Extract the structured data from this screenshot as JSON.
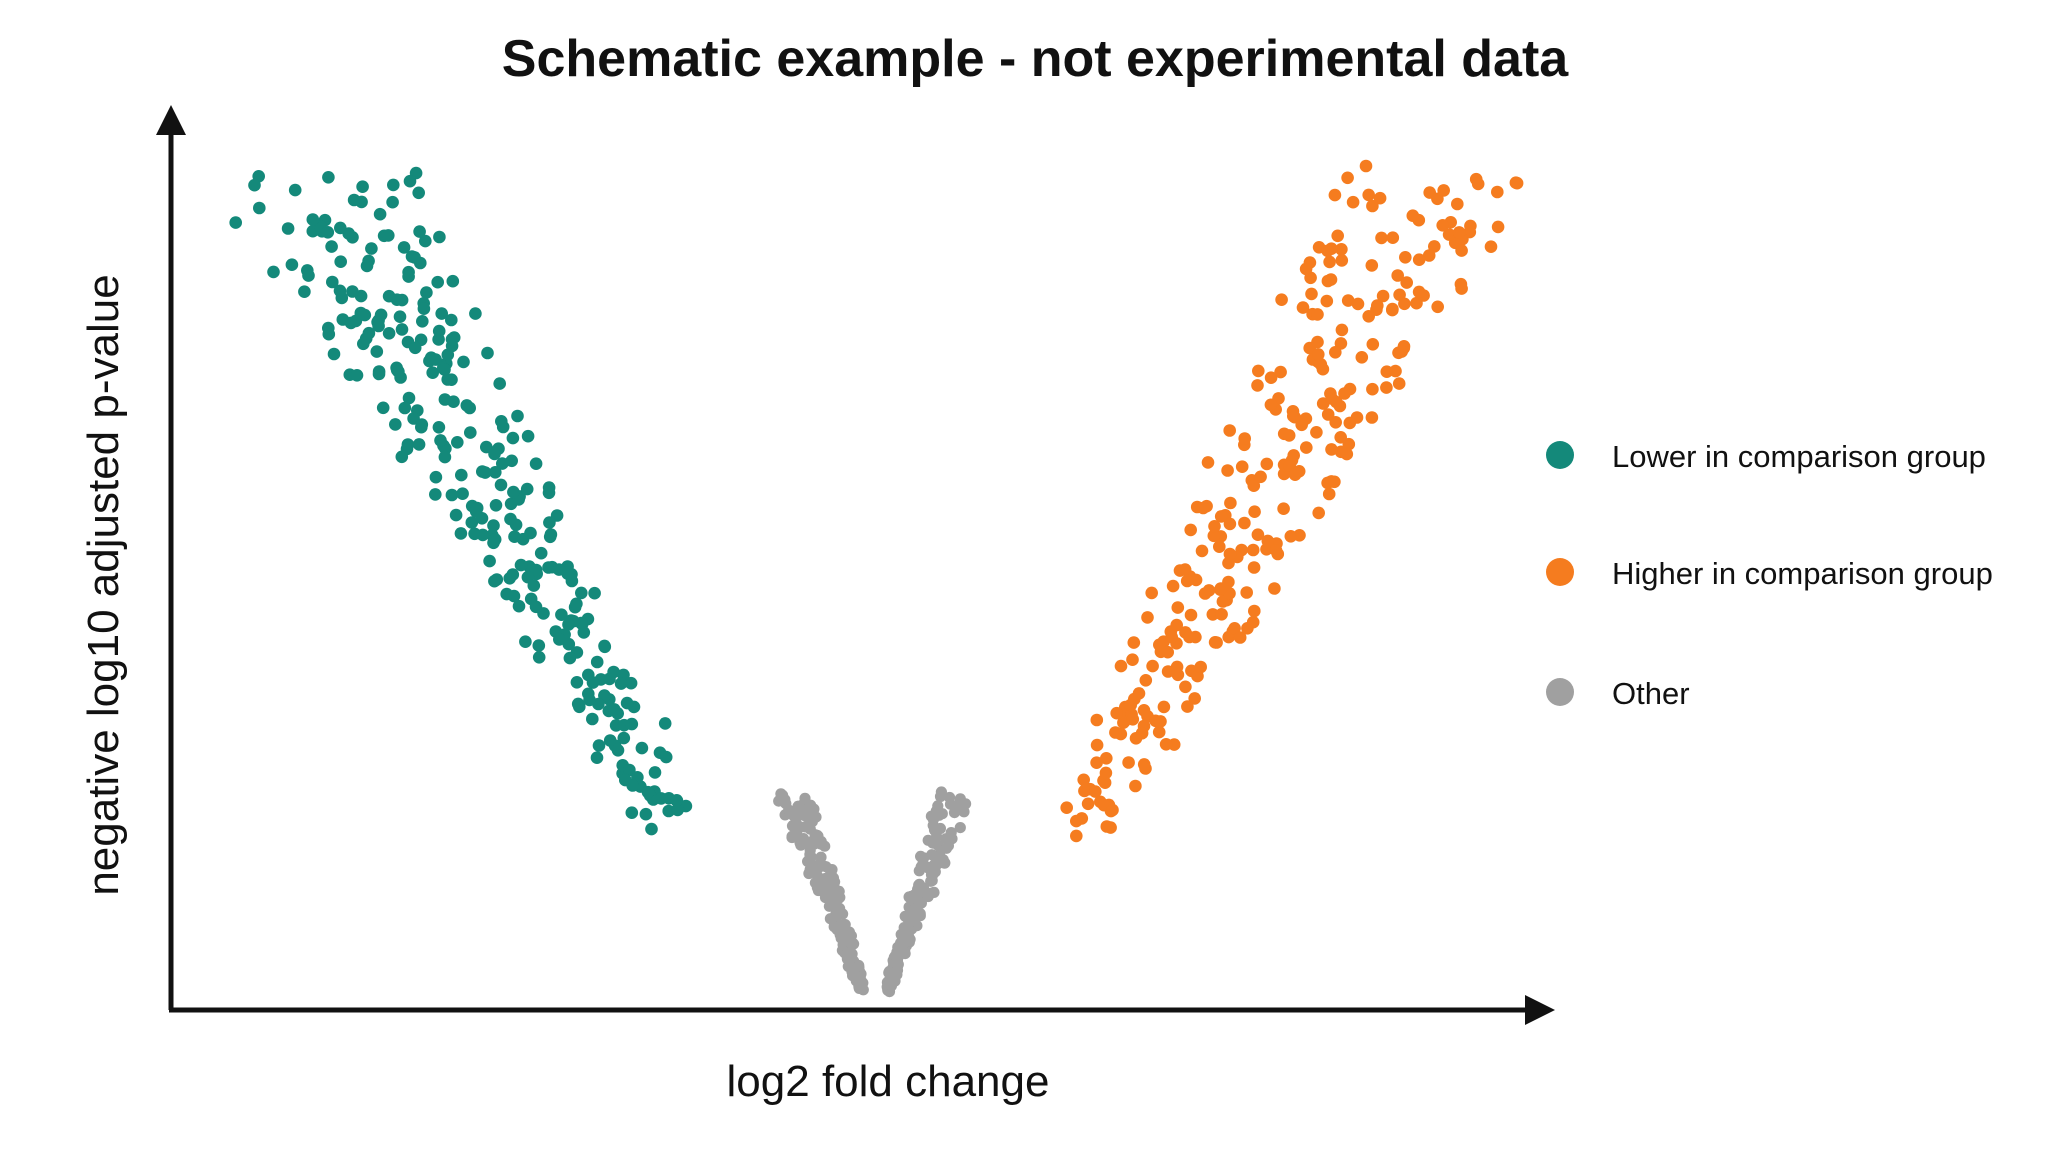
{
  "chart_data": {
    "type": "scatter",
    "title": "Schematic example - not experimental data",
    "xlabel": "log2 fold change",
    "ylabel": "negative log10 adjusted p-value",
    "show_tick_labels": false,
    "grid": false,
    "legend_position": "right",
    "shape": "volcano",
    "series": [
      {
        "name": "Lower in comparison group",
        "color": "#14897a",
        "side": "left",
        "count": 290,
        "seed": 11
      },
      {
        "name": "Higher in comparison group",
        "color": "#f57c1f",
        "side": "right",
        "count": 285,
        "seed": 29
      },
      {
        "name": "Other",
        "color": "#a0a0a0",
        "side": "center",
        "count": 360,
        "seed": 47
      }
    ]
  }
}
